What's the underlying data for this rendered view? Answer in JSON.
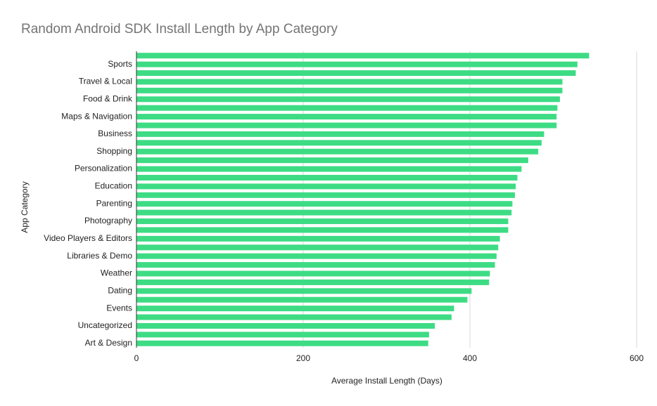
{
  "chart_data": {
    "type": "barh",
    "title": "Random Android SDK Install Length by App Category",
    "xlabel": "Average Install Length (Days)",
    "ylabel": "App Category",
    "categories": [
      null,
      "Sports",
      null,
      "Travel & Local",
      null,
      "Food & Drink",
      null,
      "Maps & Navigation",
      null,
      "Business",
      null,
      "Shopping",
      null,
      "Personalization",
      null,
      "Education",
      null,
      "Parenting",
      null,
      "Photography",
      null,
      "Video Players & Editors",
      null,
      "Libraries & Demo",
      null,
      "Weather",
      null,
      "Dating",
      null,
      "Events",
      null,
      "Uncategorized",
      null,
      "Art & Design"
    ],
    "values": [
      543,
      529,
      527,
      511,
      511,
      508,
      505,
      504,
      504,
      489,
      486,
      482,
      470,
      462,
      457,
      455,
      454,
      451,
      450,
      446,
      446,
      436,
      434,
      432,
      430,
      424,
      423,
      402,
      397,
      381,
      378,
      358,
      351,
      350
    ],
    "color": "#3ddc84",
    "xlim": [
      0,
      600
    ],
    "xticks": [
      0,
      200,
      400,
      600
    ],
    "grid": true
  }
}
